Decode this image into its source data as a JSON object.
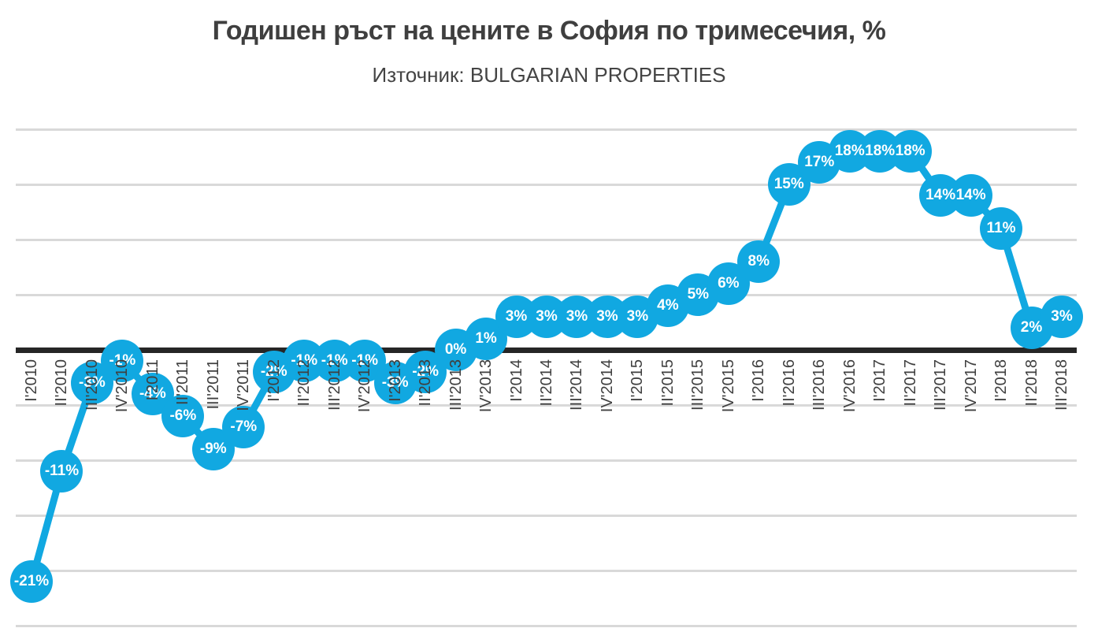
{
  "colors": {
    "accent": "#11A8E1",
    "gridline": "#D9D9D9",
    "zero_line": "#262626",
    "axis_text": "#3F3F3F",
    "point_label_text": "#FFFFFF",
    "title_text": "#3F3F3F",
    "subtitle_text": "#444444",
    "background": "#FFFFFF"
  },
  "chart_data": {
    "type": "line",
    "title": "Годишен ръст на цените в София по тримесечия, %",
    "subtitle": "Източник: BULGARIAN PROPERTIES",
    "categories": [
      "I'2010",
      "II'2010",
      "III'2010",
      "IV'2010",
      "I'2011",
      "II'2011",
      "III'2011",
      "IV'2011",
      "I'2012",
      "II'2012",
      "III'2012",
      "IV'2012",
      "I'2013",
      "II'2013",
      "III'2013",
      "IV'2013",
      "I'2014",
      "II'2014",
      "III'2014",
      "IV'2014",
      "I'2015",
      "II'2015",
      "III'2015",
      "IV'2015",
      "I'2016",
      "II'2016",
      "III'2016",
      "IV'2016",
      "I'2017",
      "II'2017",
      "III'2017",
      "IV'2017",
      "I'2018",
      "II'2018",
      "III'2018"
    ],
    "values": [
      -21,
      -11,
      -3,
      -1,
      -4,
      -6,
      -9,
      -7,
      -2,
      -1,
      -1,
      -1,
      -3,
      -2,
      0,
      1,
      3,
      3,
      3,
      3,
      3,
      4,
      5,
      6,
      8,
      15,
      17,
      18,
      18,
      18,
      14,
      14,
      11,
      2,
      3
    ],
    "point_labels": [
      "-21%",
      "-11%",
      "-3%",
      "-1%",
      "-4%",
      "-6%",
      "-9%",
      "-7%",
      "-2%",
      "-1%",
      "-1%",
      "-1%",
      "-3%",
      "-2%",
      "0%",
      "1%",
      "3%",
      "3%",
      "3%",
      "3%",
      "3%",
      "4%",
      "5%",
      "6%",
      "8%",
      "15%",
      "17%",
      "18%",
      "18%",
      "18%",
      "14%",
      "14%",
      "11%",
      "2%",
      "3%"
    ],
    "unit": "%",
    "xlabel": "",
    "ylabel": "",
    "ylim": [
      -25,
      20
    ],
    "gridline_step": 5,
    "grid": true,
    "legend": false,
    "marker": "circle",
    "line_color": "#11A8E1"
  }
}
